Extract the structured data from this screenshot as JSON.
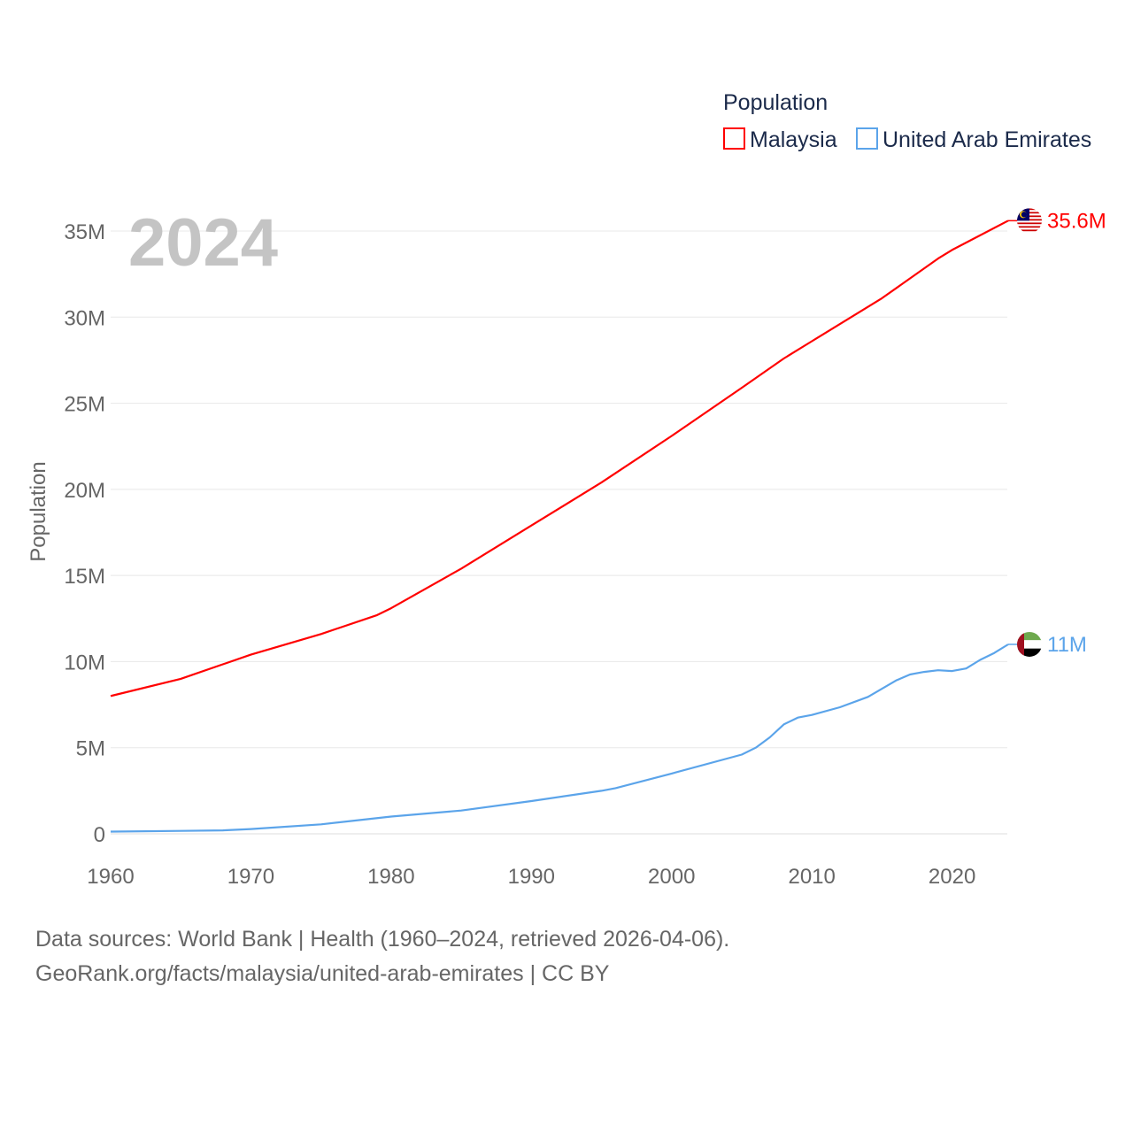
{
  "chart_data": {
    "type": "line",
    "title": "Population",
    "year_label": "2024",
    "xlabel": "",
    "ylabel": "Population",
    "xlim": [
      1960,
      2024
    ],
    "ylim": [
      0,
      35000000
    ],
    "x_ticks": [
      "1960",
      "1970",
      "1980",
      "1990",
      "2000",
      "2010",
      "2020"
    ],
    "y_ticks": [
      "0",
      "5M",
      "10M",
      "15M",
      "20M",
      "25M",
      "30M",
      "35M"
    ],
    "grid": true,
    "legend_position": "top-right",
    "series": [
      {
        "name": "Malaysia",
        "color": "#ff0000",
        "end_label": "35.6M",
        "flag": "malaysia-flag",
        "x": [
          1960,
          1965,
          1970,
          1975,
          1979,
          1980,
          1985,
          1990,
          1995,
          2000,
          2005,
          2008,
          2010,
          2015,
          2019,
          2020,
          2024
        ],
        "values": [
          8.0,
          9.0,
          10.4,
          11.6,
          12.7,
          13.1,
          15.4,
          17.9,
          20.4,
          23.1,
          25.9,
          27.6,
          28.6,
          31.1,
          33.4,
          33.9,
          35.6
        ]
      },
      {
        "name": "United Arab Emirates",
        "color": "#5ba4ea",
        "end_label": "11M",
        "flag": "uae-flag",
        "x": [
          1960,
          1965,
          1968,
          1970,
          1975,
          1980,
          1985,
          1990,
          1995,
          1996,
          2000,
          2005,
          2006,
          2007,
          2008,
          2009,
          2010,
          2012,
          2014,
          2016,
          2017,
          2018,
          2019,
          2020,
          2021,
          2022,
          2023,
          2024
        ],
        "values": [
          0.13,
          0.17,
          0.2,
          0.28,
          0.55,
          1.0,
          1.35,
          1.9,
          2.5,
          2.65,
          3.5,
          4.6,
          5.0,
          5.6,
          6.35,
          6.75,
          6.9,
          7.35,
          7.95,
          8.9,
          9.25,
          9.4,
          9.5,
          9.45,
          9.6,
          10.1,
          10.5,
          11.0
        ]
      }
    ]
  },
  "footer": {
    "line1": "Data sources: World Bank | Health (1960–2024, retrieved 2026-04-06).",
    "line2": "GeoRank.org/facts/malaysia/united-arab-emirates | CC BY"
  }
}
